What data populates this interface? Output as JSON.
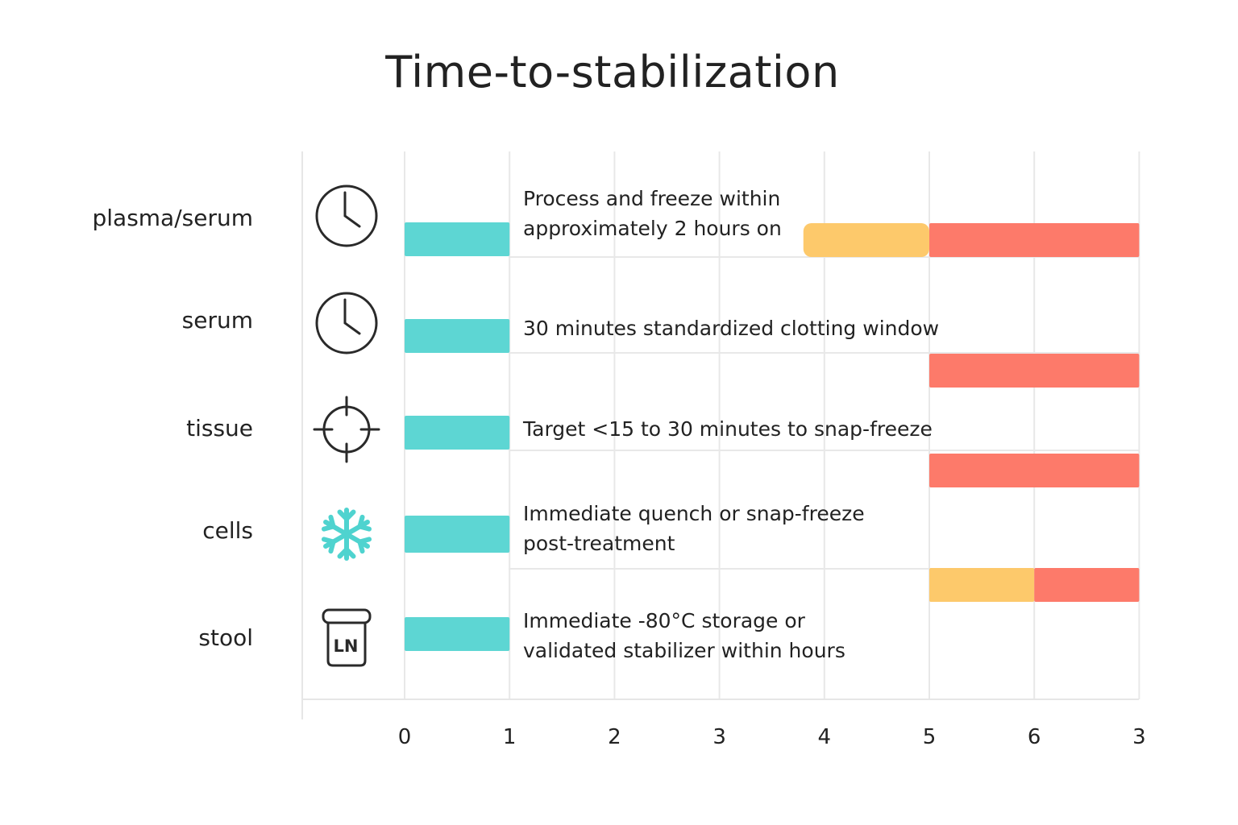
{
  "chart_data": {
    "type": "bar",
    "title": "Time-to-stabilization",
    "xlabel": "",
    "ylabel": "",
    "xlim": [
      0,
      7
    ],
    "x_tick_labels": [
      "0",
      "1",
      "2",
      "3",
      "4",
      "5",
      "6",
      "3"
    ],
    "grid": true,
    "colors": {
      "teal": "#5dd6d3",
      "amber": "#fdc96b",
      "red": "#fd7a6a"
    },
    "categories": [
      "plasma/serum",
      "serum",
      "tissue",
      "cells",
      "stool"
    ],
    "icons": [
      "clock-icon",
      "clock-icon",
      "crosshair-icon",
      "snowflake-icon",
      "ln-container-icon"
    ],
    "annotations": [
      "Process and freeze within\napproximately 2 hours on",
      "30 minutes standardized clotting window",
      "Target <15 to 30 minutes to snap-freeze",
      "Immediate quench or snap-freeze\npost-treatment",
      "Immediate -80°C storage or\nvalidated stabilizer within hours"
    ],
    "segments": [
      [
        {
          "start": 0,
          "end": 1,
          "color": "teal"
        },
        {
          "start": 3.8,
          "end": 5,
          "color": "amber",
          "lane": "lower"
        },
        {
          "start": 5,
          "end": 7,
          "color": "red",
          "lane": "lower"
        }
      ],
      [
        {
          "start": 0,
          "end": 1,
          "color": "teal"
        },
        {
          "start": 5,
          "end": 7,
          "color": "red",
          "lane": "lower"
        }
      ],
      [
        {
          "start": 0,
          "end": 1,
          "color": "teal"
        },
        {
          "start": 5,
          "end": 7,
          "color": "red",
          "lane": "lower"
        }
      ],
      [
        {
          "start": 0,
          "end": 1,
          "color": "teal"
        },
        {
          "start": 5,
          "end": 6,
          "color": "amber",
          "lane": "lower"
        },
        {
          "start": 6,
          "end": 7,
          "color": "red",
          "lane": "lower"
        }
      ],
      [
        {
          "start": 0,
          "end": 1,
          "color": "teal"
        }
      ]
    ]
  }
}
